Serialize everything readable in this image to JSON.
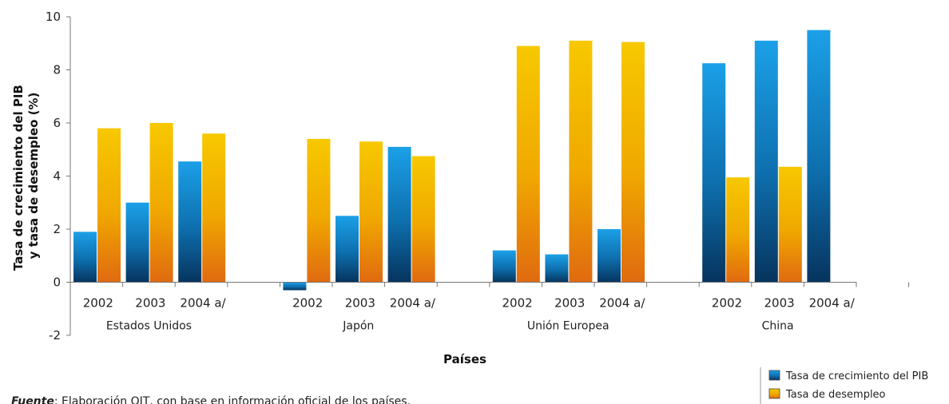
{
  "chart_data": {
    "type": "bar",
    "ylabel_lines": [
      "Tasa de crecimiento del PIB",
      "y tasa de desempleo (%)"
    ],
    "xlabel": "Países",
    "ylim": [
      -2,
      10
    ],
    "yticks": [
      "-2",
      "0",
      "2",
      "4",
      "6",
      "8",
      "10"
    ],
    "groups": [
      {
        "name": "Estados Unidos",
        "categories": [
          "2002",
          "2003",
          "2004 a/"
        ]
      },
      {
        "name": "Japón",
        "categories": [
          "2002",
          "2003",
          "2004 a/"
        ]
      },
      {
        "name": "Unión Europea",
        "categories": [
          "2002",
          "2003",
          "2004 a/"
        ]
      },
      {
        "name": "China",
        "categories": [
          "2002",
          "2003",
          "2004 a/"
        ]
      }
    ],
    "series": [
      {
        "name": "Tasa de crecimiento del PIB",
        "color": "#1b9ae0",
        "values": [
          1.9,
          3.0,
          4.55,
          -0.3,
          2.5,
          5.1,
          1.2,
          1.05,
          2.0,
          8.25,
          9.1,
          9.5
        ]
      },
      {
        "name": "Tasa de desempleo",
        "color": "#f5c400",
        "values": [
          5.8,
          6.0,
          5.6,
          5.4,
          5.3,
          4.75,
          8.9,
          9.1,
          9.05,
          3.95,
          4.35,
          null
        ]
      }
    ],
    "legend_position": "bottom-right"
  },
  "source": {
    "label": "Fuente",
    "text": ": Elaboración OIT, con base en información oficial de los países."
  }
}
